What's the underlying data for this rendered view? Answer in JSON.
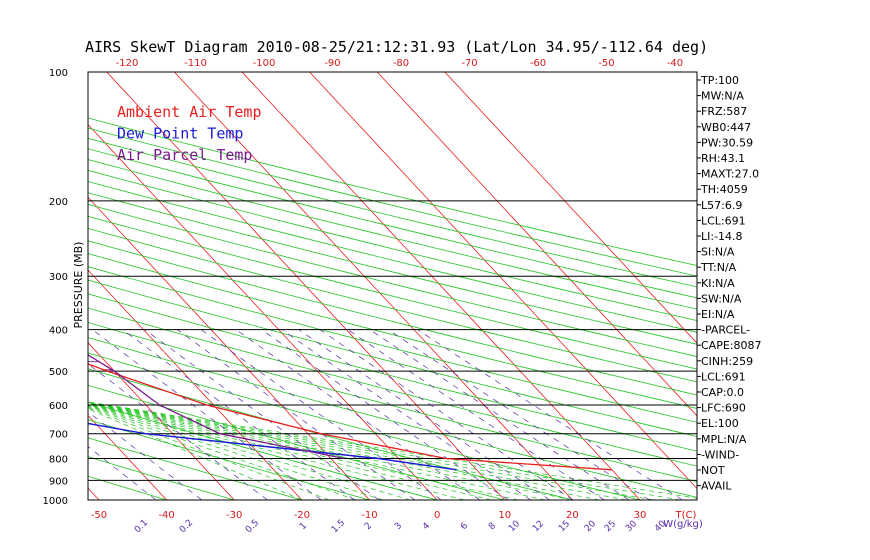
{
  "chart_data": {
    "type": "line",
    "title": "AIRS SkewT Diagram 2010-08-25/21:12:31.93 (Lat/Lon 34.95/-112.64 deg)",
    "ylabel": "PRESSURE (MB)",
    "xlabel": "T(C)",
    "mixing_unit": "W(g/kg)",
    "y_scale": "log",
    "ylim": [
      1000,
      100
    ],
    "bottom_temp_range": [
      -55,
      40
    ],
    "pressure_ticks": [
      100,
      200,
      300,
      400,
      500,
      600,
      700,
      800,
      900,
      1000
    ],
    "pressure_tick_labels": [
      "100",
      "200",
      "300",
      "400",
      "500",
      "600",
      "700",
      "800",
      "900",
      "1000"
    ],
    "top_temp_ticks": [
      -120,
      -110,
      -100,
      -90,
      -80,
      -70,
      -60,
      -50,
      -40
    ],
    "top_temp_tick_labels": [
      "-120",
      "-110",
      "-100",
      "-90",
      "-80",
      "-70",
      "-60",
      "-50",
      "-40"
    ],
    "bottom_temp_ticks": [
      -50,
      -40,
      -30,
      -20,
      -10,
      0,
      10,
      20,
      30
    ],
    "bottom_temp_tick_labels": [
      "-50",
      "-40",
      "-30",
      "-20",
      "-10",
      "0",
      "10",
      "20",
      "30"
    ],
    "mixing_ratio_labels": [
      "0.1",
      "0.2",
      "0.5",
      "1",
      "1.5",
      "2",
      "3",
      "4",
      "6",
      "8",
      "10",
      "12",
      "15",
      "20",
      "25",
      "30",
      "40"
    ],
    "legend": [
      {
        "label": "Ambient Air Temp",
        "color": "#e8201e"
      },
      {
        "label": "Dew Point Temp",
        "color": "#1a1ad8"
      },
      {
        "label": "Air Parcel Temp",
        "color": "#7a1a8c"
      }
    ],
    "series": [
      {
        "name": "Ambient Air Temp",
        "color": "#e8201e",
        "points": [
          [
            100,
            -68
          ],
          [
            140,
            -80
          ],
          [
            200,
            -73
          ],
          [
            300,
            -55
          ],
          [
            400,
            -42
          ],
          [
            500,
            -31
          ],
          [
            600,
            -21
          ],
          [
            700,
            -8
          ],
          [
            800,
            7
          ],
          [
            850,
            30
          ]
        ]
      },
      {
        "name": "Dew Point Temp",
        "color": "#1a1ad8",
        "points": [
          [
            100,
            -86
          ],
          [
            160,
            -86
          ],
          [
            260,
            -77
          ],
          [
            300,
            -82
          ],
          [
            400,
            -93
          ],
          [
            500,
            -73
          ],
          [
            600,
            -54
          ],
          [
            700,
            -34
          ],
          [
            800,
            -3
          ],
          [
            850,
            7
          ]
        ]
      },
      {
        "name": "Air Parcel Temp",
        "color": "#7a1a8c",
        "points": [
          [
            100,
            -68
          ],
          [
            120,
            -62
          ],
          [
            150,
            -55
          ],
          [
            200,
            -48
          ],
          [
            250,
            -43
          ],
          [
            300,
            -39
          ],
          [
            350,
            -36
          ],
          [
            400,
            -34
          ],
          [
            450,
            -32
          ],
          [
            500,
            -30
          ],
          [
            600,
            -28
          ],
          [
            700,
            -23
          ],
          [
            800,
            -8
          ]
        ]
      }
    ],
    "side_panel": [
      "TP:100",
      "MW:N/A",
      "FRZ:587",
      "WB0:447",
      "PW:30.59",
      "RH:43.1",
      "MAXT:27.0",
      "TH:4059",
      "L57:6.9",
      "LCL:691",
      "LI:-14.8",
      "SI:N/A",
      "TT:N/A",
      "KI:N/A",
      "SW:N/A",
      "EI:N/A",
      "-PARCEL-",
      "CAPE:8087",
      "CINH:259",
      "LCL:691",
      "CAP:0.0",
      "LFC:690",
      "EL:100",
      "MPL:N/A",
      "-WIND-",
      "NOT",
      "AVAIL"
    ],
    "grid": true,
    "legend_placement": "top-left"
  }
}
